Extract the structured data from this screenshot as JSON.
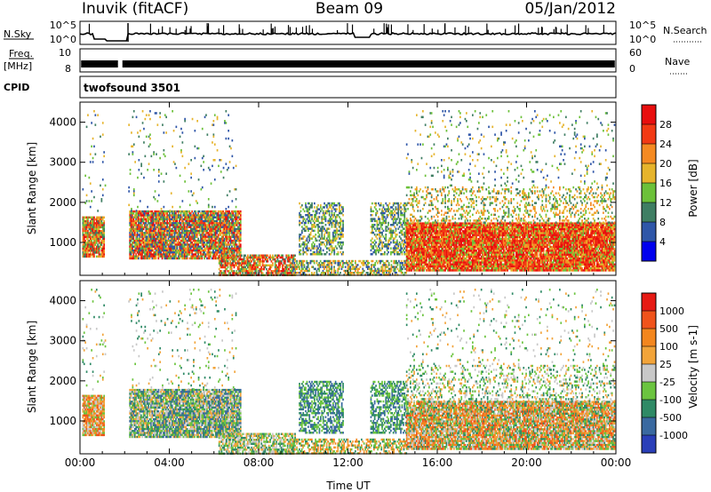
{
  "header": {
    "station": "Inuvik (fitACF)",
    "beam": "Beam 09",
    "date": "05/Jan/2012"
  },
  "strips": {
    "nsky": {
      "label": "N.Sky",
      "scale_labels": [
        "10^5",
        "10^0"
      ]
    },
    "nsearch": {
      "label": "N.Search"
    },
    "freq": {
      "label": "Freq.",
      "unit": "[MHz]",
      "left_ticks": [
        "10",
        "8"
      ],
      "right_ticks": [
        "60",
        "0"
      ]
    },
    "nave": {
      "label": "Nave"
    },
    "cpid": {
      "label": "CPID",
      "value": "twofsound 3501"
    }
  },
  "colorbars": {
    "power": {
      "title": "Power [dB]",
      "ticks": [
        "28",
        "24",
        "20",
        "16",
        "12",
        "8",
        "4"
      ],
      "colors": [
        "#0000ee",
        "#2f56a8",
        "#3f7e63",
        "#6cc13a",
        "#e6b42c",
        "#f58a22",
        "#f23a14",
        "#e80e0e"
      ]
    },
    "velocity": {
      "title": "Velocity [m s-1]",
      "ticks": [
        "1000",
        "500",
        "100",
        "25",
        "-25",
        "-100",
        "-500",
        "-1000"
      ],
      "colors": [
        "#2a3fb8",
        "#3a69a0",
        "#2f8a66",
        "#6bc43f",
        "#c8c8c8",
        "#f2a43a",
        "#f3861e",
        "#f0531b",
        "#e61a14"
      ]
    }
  },
  "chart_data": [
    {
      "type": "heatmap",
      "title": "Power",
      "xlabel": "Time UT",
      "ylabel": "Slant Range [km]",
      "x_ticks": [
        "00:00",
        "04:00",
        "08:00",
        "12:00",
        "16:00",
        "20:00",
        "00:00"
      ],
      "y_ticks": [
        4000,
        3000,
        2000,
        1000
      ],
      "xlim": [
        0,
        24
      ],
      "ylim": [
        180,
        4500
      ],
      "gap_hours": [
        1.15,
        2.15
      ],
      "blobs": [
        {
          "t0": 0.1,
          "t1": 1.1,
          "r0": 650,
          "r1": 1650,
          "density": 0.9,
          "colors": [
            "#e80e0e",
            "#f23a14",
            "#f58a22",
            "#e6b42c",
            "#6cc13a",
            "#3f7e63"
          ]
        },
        {
          "t0": 2.2,
          "t1": 7.2,
          "r0": 600,
          "r1": 1800,
          "density": 0.9,
          "colors": [
            "#e80e0e",
            "#f23a14",
            "#f58a22",
            "#e6b42c",
            "#6cc13a",
            "#3f7e63",
            "#2f56a8"
          ]
        },
        {
          "t0": 6.2,
          "t1": 9.6,
          "r0": 200,
          "r1": 700,
          "density": 0.75,
          "colors": [
            "#e80e0e",
            "#f23a14",
            "#f58a22",
            "#e6b42c",
            "#6cc13a",
            "#3f7e63"
          ]
        },
        {
          "t0": 9.4,
          "t1": 14.6,
          "r0": 200,
          "r1": 560,
          "density": 0.55,
          "colors": [
            "#f58a22",
            "#e6b42c",
            "#6cc13a",
            "#3f7e63",
            "#2f56a8"
          ]
        },
        {
          "t0": 9.8,
          "t1": 11.8,
          "r0": 700,
          "r1": 2000,
          "density": 0.5,
          "colors": [
            "#e6b42c",
            "#6cc13a",
            "#3f7e63",
            "#2f56a8"
          ]
        },
        {
          "t0": 13.0,
          "t1": 14.6,
          "r0": 700,
          "r1": 2000,
          "density": 0.5,
          "colors": [
            "#e6b42c",
            "#6cc13a",
            "#3f7e63",
            "#2f56a8"
          ]
        },
        {
          "t0": 14.6,
          "t1": 23.95,
          "r0": 300,
          "r1": 1500,
          "density": 0.95,
          "colors": [
            "#e80e0e",
            "#f23a14",
            "#f58a22",
            "#e80e0e",
            "#f23a14",
            "#e6b42c",
            "#6cc13a"
          ]
        },
        {
          "t0": 14.6,
          "t1": 23.95,
          "r0": 1500,
          "r1": 2400,
          "density": 0.25,
          "colors": [
            "#f58a22",
            "#e6b42c",
            "#6cc13a",
            "#3f7e63"
          ]
        },
        {
          "t0": 0.1,
          "t1": 7.0,
          "r0": 1800,
          "r1": 4300,
          "density": 0.04,
          "colors": [
            "#2f56a8",
            "#3f7e63",
            "#6cc13a",
            "#e6b42c"
          ]
        },
        {
          "t0": 14.6,
          "t1": 23.95,
          "r0": 2400,
          "r1": 4300,
          "density": 0.05,
          "colors": [
            "#2f56a8",
            "#3f7e63",
            "#6cc13a",
            "#e6b42c"
          ]
        }
      ]
    },
    {
      "type": "heatmap",
      "title": "Velocity",
      "xlabel": "Time UT",
      "ylabel": "Slant Range [km]",
      "x_ticks": [
        "00:00",
        "04:00",
        "08:00",
        "12:00",
        "16:00",
        "20:00",
        "00:00"
      ],
      "y_ticks": [
        4000,
        3000,
        2000,
        1000
      ],
      "xlim": [
        0,
        24
      ],
      "ylim": [
        180,
        4500
      ],
      "gap_hours": [
        1.15,
        2.15
      ],
      "blobs": [
        {
          "t0": 0.1,
          "t1": 1.1,
          "r0": 650,
          "r1": 1650,
          "density": 0.9,
          "colors": [
            "#f2a43a",
            "#f3861e",
            "#f0531b",
            "#6bc43f",
            "#c8c8c8"
          ]
        },
        {
          "t0": 2.2,
          "t1": 7.2,
          "r0": 600,
          "r1": 1800,
          "density": 0.9,
          "colors": [
            "#6bc43f",
            "#2f8a66",
            "#c8c8c8",
            "#f2a43a",
            "#3a69a0"
          ]
        },
        {
          "t0": 6.2,
          "t1": 9.6,
          "r0": 200,
          "r1": 700,
          "density": 0.7,
          "colors": [
            "#2f8a66",
            "#6bc43f",
            "#c8c8c8",
            "#f2a43a"
          ]
        },
        {
          "t0": 9.4,
          "t1": 14.6,
          "r0": 200,
          "r1": 560,
          "density": 0.5,
          "colors": [
            "#f2a43a",
            "#f3861e",
            "#6bc43f",
            "#2f8a66"
          ]
        },
        {
          "t0": 9.8,
          "t1": 11.8,
          "r0": 700,
          "r1": 2000,
          "density": 0.55,
          "colors": [
            "#2f8a66",
            "#3a69a0",
            "#6bc43f"
          ]
        },
        {
          "t0": 13.0,
          "t1": 14.6,
          "r0": 700,
          "r1": 2000,
          "density": 0.55,
          "colors": [
            "#2f8a66",
            "#3a69a0",
            "#6bc43f"
          ]
        },
        {
          "t0": 14.6,
          "t1": 23.95,
          "r0": 300,
          "r1": 1500,
          "density": 0.9,
          "colors": [
            "#f2a43a",
            "#f3861e",
            "#c8c8c8",
            "#6bc43f",
            "#2f8a66",
            "#f0531b"
          ]
        },
        {
          "t0": 14.6,
          "t1": 23.95,
          "r0": 1500,
          "r1": 2400,
          "density": 0.25,
          "colors": [
            "#6bc43f",
            "#2f8a66",
            "#f2a43a",
            "#c8c8c8"
          ]
        },
        {
          "t0": 0.1,
          "t1": 7.0,
          "r0": 1800,
          "r1": 4300,
          "density": 0.05,
          "colors": [
            "#c8c8c8",
            "#f2a43a",
            "#6bc43f",
            "#2f8a66"
          ]
        },
        {
          "t0": 14.6,
          "t1": 23.95,
          "r0": 2400,
          "r1": 4300,
          "density": 0.05,
          "colors": [
            "#f2a43a",
            "#6bc43f",
            "#2f8a66",
            "#c8c8c8"
          ]
        }
      ]
    }
  ]
}
